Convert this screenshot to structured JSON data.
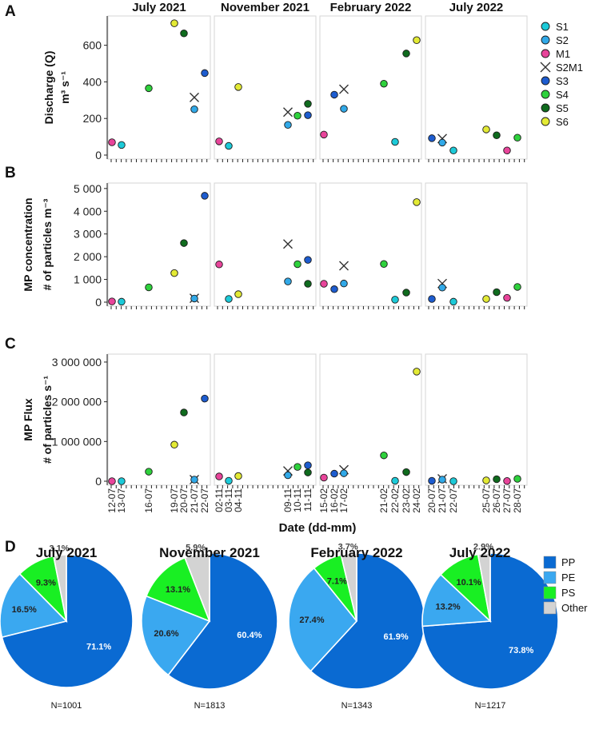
{
  "figure": {
    "panel_letters": [
      "A",
      "B",
      "C",
      "D"
    ],
    "xlabel": "Date (dd-mm)"
  },
  "chart_data": [
    {
      "type": "scatter",
      "panel": "A",
      "ylabel_line1": "Discharge (Q)",
      "ylabel_line2": "m³ s⁻¹",
      "ylim": [
        0,
        760
      ],
      "yticks": [
        0,
        200,
        400,
        600
      ],
      "ytick_labels": [
        "0",
        "200",
        "400",
        "600"
      ],
      "facets": [
        "July 2021",
        "November 2021",
        "February 2022",
        "July 2022"
      ],
      "points": [
        {
          "facet": 0,
          "date": "12-07",
          "site": "M1",
          "y": 70
        },
        {
          "facet": 0,
          "date": "13-07",
          "site": "S1",
          "y": 55
        },
        {
          "facet": 0,
          "date": "16-07",
          "site": "S4",
          "y": 365
        },
        {
          "facet": 0,
          "date": "19-07",
          "site": "S6",
          "y": 720
        },
        {
          "facet": 0,
          "date": "20-07",
          "site": "S5",
          "y": 665
        },
        {
          "facet": 0,
          "date": "21-07",
          "site": "S2M1",
          "y": 315
        },
        {
          "facet": 0,
          "date": "21-07",
          "site": "S2",
          "y": 250
        },
        {
          "facet": 0,
          "date": "22-07",
          "site": "S3",
          "y": 448
        },
        {
          "facet": 1,
          "date": "02-11",
          "site": "M1",
          "y": 75
        },
        {
          "facet": 1,
          "date": "03-11",
          "site": "S1",
          "y": 50
        },
        {
          "facet": 1,
          "date": "04-11",
          "site": "S6",
          "y": 372
        },
        {
          "facet": 1,
          "date": "09-11",
          "site": "S2M1",
          "y": 235
        },
        {
          "facet": 1,
          "date": "09-11",
          "site": "S2",
          "y": 165
        },
        {
          "facet": 1,
          "date": "10-11",
          "site": "S4",
          "y": 215
        },
        {
          "facet": 1,
          "date": "11-11",
          "site": "S3",
          "y": 218
        },
        {
          "facet": 1,
          "date": "11-11",
          "site": "S5",
          "y": 280
        },
        {
          "facet": 2,
          "date": "15-02",
          "site": "M1",
          "y": 112
        },
        {
          "facet": 2,
          "date": "16-02",
          "site": "S3",
          "y": 330
        },
        {
          "facet": 2,
          "date": "17-02",
          "site": "S2M1",
          "y": 360
        },
        {
          "facet": 2,
          "date": "17-02",
          "site": "S2",
          "y": 253
        },
        {
          "facet": 2,
          "date": "21-02",
          "site": "S4",
          "y": 390
        },
        {
          "facet": 2,
          "date": "22-02",
          "site": "S1",
          "y": 72
        },
        {
          "facet": 2,
          "date": "23-02",
          "site": "S5",
          "y": 555
        },
        {
          "facet": 2,
          "date": "24-02",
          "site": "S6",
          "y": 628
        },
        {
          "facet": 3,
          "date": "20-07",
          "site": "S3",
          "y": 92
        },
        {
          "facet": 3,
          "date": "21-07",
          "site": "S2M1",
          "y": 90
        },
        {
          "facet": 3,
          "date": "21-07",
          "site": "S2",
          "y": 68
        },
        {
          "facet": 3,
          "date": "22-07",
          "site": "S1",
          "y": 25
        },
        {
          "facet": 3,
          "date": "25-07",
          "site": "S6",
          "y": 140
        },
        {
          "facet": 3,
          "date": "26-07",
          "site": "S5",
          "y": 108
        },
        {
          "facet": 3,
          "date": "27-07",
          "site": "M1",
          "y": 25
        },
        {
          "facet": 3,
          "date": "28-07",
          "site": "S4",
          "y": 95
        }
      ]
    },
    {
      "type": "scatter",
      "panel": "B",
      "ylabel_line1": "MP concentration",
      "ylabel_line2": "# of particles m⁻³",
      "ylim": [
        0,
        5240
      ],
      "yticks": [
        0,
        1000,
        2000,
        3000,
        4000,
        5000
      ],
      "ytick_labels": [
        "0",
        "1 000",
        "2 000",
        "3 000",
        "4 000",
        "5 000"
      ],
      "points": [
        {
          "facet": 0,
          "date": "12-07",
          "site": "M1",
          "y": 30
        },
        {
          "facet": 0,
          "date": "13-07",
          "site": "S1",
          "y": 20
        },
        {
          "facet": 0,
          "date": "16-07",
          "site": "S4",
          "y": 650
        },
        {
          "facet": 0,
          "date": "19-07",
          "site": "S6",
          "y": 1280
        },
        {
          "facet": 0,
          "date": "20-07",
          "site": "S5",
          "y": 2600
        },
        {
          "facet": 0,
          "date": "21-07",
          "site": "S2M1",
          "y": 170
        },
        {
          "facet": 0,
          "date": "21-07",
          "site": "S2",
          "y": 160
        },
        {
          "facet": 0,
          "date": "22-07",
          "site": "S3",
          "y": 4680
        },
        {
          "facet": 1,
          "date": "02-11",
          "site": "M1",
          "y": 1660
        },
        {
          "facet": 1,
          "date": "03-11",
          "site": "S1",
          "y": 140
        },
        {
          "facet": 1,
          "date": "04-11",
          "site": "S6",
          "y": 350
        },
        {
          "facet": 1,
          "date": "09-11",
          "site": "S2M1",
          "y": 2560
        },
        {
          "facet": 1,
          "date": "09-11",
          "site": "S2",
          "y": 910
        },
        {
          "facet": 1,
          "date": "10-11",
          "site": "S4",
          "y": 1670
        },
        {
          "facet": 1,
          "date": "11-11",
          "site": "S3",
          "y": 1860
        },
        {
          "facet": 1,
          "date": "11-11",
          "site": "S5",
          "y": 810
        },
        {
          "facet": 2,
          "date": "15-02",
          "site": "M1",
          "y": 810
        },
        {
          "facet": 2,
          "date": "16-02",
          "site": "S3",
          "y": 570
        },
        {
          "facet": 2,
          "date": "17-02",
          "site": "S2M1",
          "y": 1600
        },
        {
          "facet": 2,
          "date": "17-02",
          "site": "S2",
          "y": 820
        },
        {
          "facet": 2,
          "date": "21-02",
          "site": "S4",
          "y": 1680
        },
        {
          "facet": 2,
          "date": "22-02",
          "site": "S1",
          "y": 110
        },
        {
          "facet": 2,
          "date": "23-02",
          "site": "S5",
          "y": 420
        },
        {
          "facet": 2,
          "date": "24-02",
          "site": "S6",
          "y": 4400
        },
        {
          "facet": 3,
          "date": "20-07",
          "site": "S3",
          "y": 140
        },
        {
          "facet": 3,
          "date": "21-07",
          "site": "S2M1",
          "y": 820
        },
        {
          "facet": 3,
          "date": "21-07",
          "site": "S2",
          "y": 640
        },
        {
          "facet": 3,
          "date": "22-07",
          "site": "S1",
          "y": 20
        },
        {
          "facet": 3,
          "date": "25-07",
          "site": "S6",
          "y": 140
        },
        {
          "facet": 3,
          "date": "26-07",
          "site": "S5",
          "y": 440
        },
        {
          "facet": 3,
          "date": "27-07",
          "site": "M1",
          "y": 190
        },
        {
          "facet": 3,
          "date": "28-07",
          "site": "S4",
          "y": 670
        }
      ]
    },
    {
      "type": "scatter",
      "panel": "C",
      "ylabel_line1": "MP Flux",
      "ylabel_line2": "# of particles s⁻¹",
      "ylim": [
        0,
        3200000
      ],
      "yticks": [
        0,
        1000000,
        2000000,
        3000000
      ],
      "ytick_labels": [
        "0",
        "1 000 000",
        "2 000 000",
        "3 000 000"
      ],
      "points": [
        {
          "facet": 0,
          "date": "12-07",
          "site": "M1",
          "y": 0
        },
        {
          "facet": 0,
          "date": "13-07",
          "site": "S1",
          "y": 0
        },
        {
          "facet": 0,
          "date": "16-07",
          "site": "S4",
          "y": 240000
        },
        {
          "facet": 0,
          "date": "19-07",
          "site": "S6",
          "y": 920000
        },
        {
          "facet": 0,
          "date": "20-07",
          "site": "S5",
          "y": 1730000
        },
        {
          "facet": 0,
          "date": "21-07",
          "site": "S2M1",
          "y": 40000
        },
        {
          "facet": 0,
          "date": "21-07",
          "site": "S2",
          "y": 40000
        },
        {
          "facet": 0,
          "date": "22-07",
          "site": "S3",
          "y": 2080000
        },
        {
          "facet": 1,
          "date": "02-11",
          "site": "M1",
          "y": 120000
        },
        {
          "facet": 1,
          "date": "03-11",
          "site": "S1",
          "y": 10000
        },
        {
          "facet": 1,
          "date": "04-11",
          "site": "S6",
          "y": 130000
        },
        {
          "facet": 1,
          "date": "09-11",
          "site": "S2M1",
          "y": 260000
        },
        {
          "facet": 1,
          "date": "09-11",
          "site": "S2",
          "y": 150000
        },
        {
          "facet": 1,
          "date": "10-11",
          "site": "S4",
          "y": 360000
        },
        {
          "facet": 1,
          "date": "11-11",
          "site": "S3",
          "y": 400000
        },
        {
          "facet": 1,
          "date": "11-11",
          "site": "S5",
          "y": 220000
        },
        {
          "facet": 2,
          "date": "15-02",
          "site": "M1",
          "y": 90000
        },
        {
          "facet": 2,
          "date": "16-02",
          "site": "S3",
          "y": 190000
        },
        {
          "facet": 2,
          "date": "17-02",
          "site": "S2M1",
          "y": 290000
        },
        {
          "facet": 2,
          "date": "17-02",
          "site": "S2",
          "y": 200000
        },
        {
          "facet": 2,
          "date": "21-02",
          "site": "S4",
          "y": 650000
        },
        {
          "facet": 2,
          "date": "22-02",
          "site": "S1",
          "y": 10000
        },
        {
          "facet": 2,
          "date": "23-02",
          "site": "S5",
          "y": 230000
        },
        {
          "facet": 2,
          "date": "24-02",
          "site": "S6",
          "y": 2760000
        },
        {
          "facet": 3,
          "date": "20-07",
          "site": "S3",
          "y": 10000
        },
        {
          "facet": 3,
          "date": "21-07",
          "site": "S2M1",
          "y": 60000
        },
        {
          "facet": 3,
          "date": "21-07",
          "site": "S2",
          "y": 40000
        },
        {
          "facet": 3,
          "date": "22-07",
          "site": "S1",
          "y": 0
        },
        {
          "facet": 3,
          "date": "25-07",
          "site": "S6",
          "y": 20000
        },
        {
          "facet": 3,
          "date": "26-07",
          "site": "S5",
          "y": 50000
        },
        {
          "facet": 3,
          "date": "27-07",
          "site": "M1",
          "y": 5000
        },
        {
          "facet": 3,
          "date": "28-07",
          "site": "S4",
          "y": 60000
        }
      ]
    },
    {
      "type": "pie",
      "panel": "D",
      "categories": [
        "PP",
        "PE",
        "PS",
        "Other"
      ],
      "colors": [
        "#0a6ad2",
        "#3aa8f0",
        "#19ef23",
        "#d3d3d3"
      ],
      "pies": [
        {
          "title": "July 2021",
          "values": [
            71.1,
            16.5,
            9.3,
            3.1
          ],
          "labels": [
            "71.1%",
            "16.5%",
            "9.3%",
            "3.1%"
          ],
          "n": "N=1001"
        },
        {
          "title": "November 2021",
          "values": [
            60.4,
            20.6,
            13.1,
            5.9
          ],
          "labels": [
            "60.4%",
            "20.6%",
            "13.1%",
            "5.9%"
          ],
          "n": "N=1813"
        },
        {
          "title": "February 2022",
          "values": [
            61.9,
            27.4,
            7.1,
            3.7
          ],
          "labels": [
            "61.9%",
            "27.4%",
            "7.1%",
            "3.7%"
          ],
          "n": "N=1343"
        },
        {
          "title": "July 2022",
          "values": [
            73.8,
            13.2,
            10.1,
            2.9
          ],
          "labels": [
            "73.8%",
            "13.2%",
            "10.1%",
            "2.9%"
          ],
          "n": "N=1217"
        }
      ]
    }
  ],
  "sites": [
    {
      "name": "S1",
      "color": "#1ccad8",
      "marker": "circle"
    },
    {
      "name": "S2",
      "color": "#31a9e8",
      "marker": "circle"
    },
    {
      "name": "M1",
      "color": "#e8449a",
      "marker": "circle"
    },
    {
      "name": "S2M1",
      "color": "#333333",
      "marker": "cross"
    },
    {
      "name": "S3",
      "color": "#1d5ccf",
      "marker": "circle"
    },
    {
      "name": "S4",
      "color": "#2ed13c",
      "marker": "circle"
    },
    {
      "name": "S5",
      "color": "#0f6b1e",
      "marker": "circle"
    },
    {
      "name": "S6",
      "color": "#e3ea35",
      "marker": "circle"
    }
  ],
  "facet_dates": [
    [
      "12-07",
      "13-07",
      "16-07",
      "19-07",
      "20-07",
      "21-07",
      "22-07"
    ],
    [
      "02-11",
      "03-11",
      "04-11",
      "09-11",
      "10-11",
      "11-11"
    ],
    [
      "15-02",
      "16-02",
      "17-02",
      "21-02",
      "22-02",
      "23-02",
      "24-02"
    ],
    [
      "20-07",
      "21-07",
      "22-07",
      "25-07",
      "26-07",
      "27-07",
      "28-07"
    ]
  ]
}
